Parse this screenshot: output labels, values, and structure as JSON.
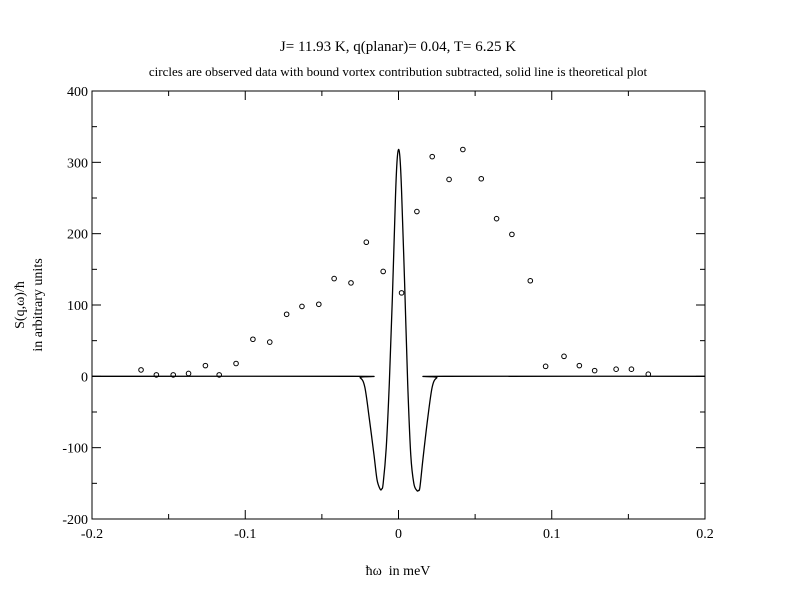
{
  "chart_data": {
    "type": "scatter",
    "title": "J= 11.93 K, q(planar)= 0.04, T= 6.25 K",
    "subtitle": "circles are observed data with bound vortex contribution subtracted, solid line is theoretical plot",
    "xlabel": "ħω  in meV",
    "ylabel_line1": "S(q,ω)/ħ",
    "ylabel_line2": "in arbitrary units",
    "xlim": [
      -0.2,
      0.2
    ],
    "ylim": [
      -200,
      400
    ],
    "xticks": [
      -0.2,
      -0.1,
      0,
      0.1,
      0.2
    ],
    "xtick_labels": [
      "-0.2",
      "-0.1",
      "0",
      "0.1",
      "0.2"
    ],
    "yticks": [
      -200,
      -100,
      0,
      100,
      200,
      300,
      400
    ],
    "ytick_labels": [
      "-200",
      "-100",
      "0",
      "100",
      "200",
      "300",
      "400"
    ],
    "grid": false,
    "series": [
      {
        "kind": "points",
        "marker": "open-circle",
        "x": [
          -0.168,
          -0.158,
          -0.147,
          -0.137,
          -0.126,
          -0.117,
          -0.106,
          -0.095,
          -0.084,
          -0.073,
          -0.063,
          -0.052,
          -0.042,
          -0.031,
          -0.021,
          -0.01,
          0.002,
          0.012,
          0.022,
          0.033,
          0.042,
          0.054,
          0.064,
          0.074,
          0.086,
          0.096,
          0.108,
          0.118,
          0.128,
          0.142,
          0.152,
          0.163
        ],
        "y": [
          9,
          2,
          2,
          4,
          15,
          2,
          18,
          52,
          48,
          87,
          98,
          101,
          137,
          131,
          188,
          147,
          117,
          231,
          308,
          276,
          318,
          277,
          221,
          199,
          134,
          14,
          28,
          15,
          8,
          10,
          10,
          3
        ]
      },
      {
        "kind": "line",
        "x": [
          -0.2,
          -0.03,
          -0.025,
          -0.022,
          -0.019,
          -0.016,
          -0.014,
          -0.012,
          -0.011,
          -0.01,
          -0.008,
          -0.006,
          -0.004,
          -0.002,
          -0.001,
          0,
          0.001,
          0.002,
          0.004,
          0.006,
          0.008,
          0.01,
          0.012,
          0.013,
          0.014,
          0.016,
          0.019,
          0.022,
          0.025,
          0.03,
          0.2
        ],
        "y": [
          0,
          0,
          -2,
          -15,
          -60,
          -110,
          -145,
          -158,
          -158,
          -150,
          -100,
          -10,
          110,
          250,
          300,
          318,
          305,
          260,
          130,
          -10,
          -110,
          -150,
          -160,
          -160,
          -155,
          -115,
          -60,
          -15,
          -2,
          0,
          0
        ]
      }
    ]
  }
}
